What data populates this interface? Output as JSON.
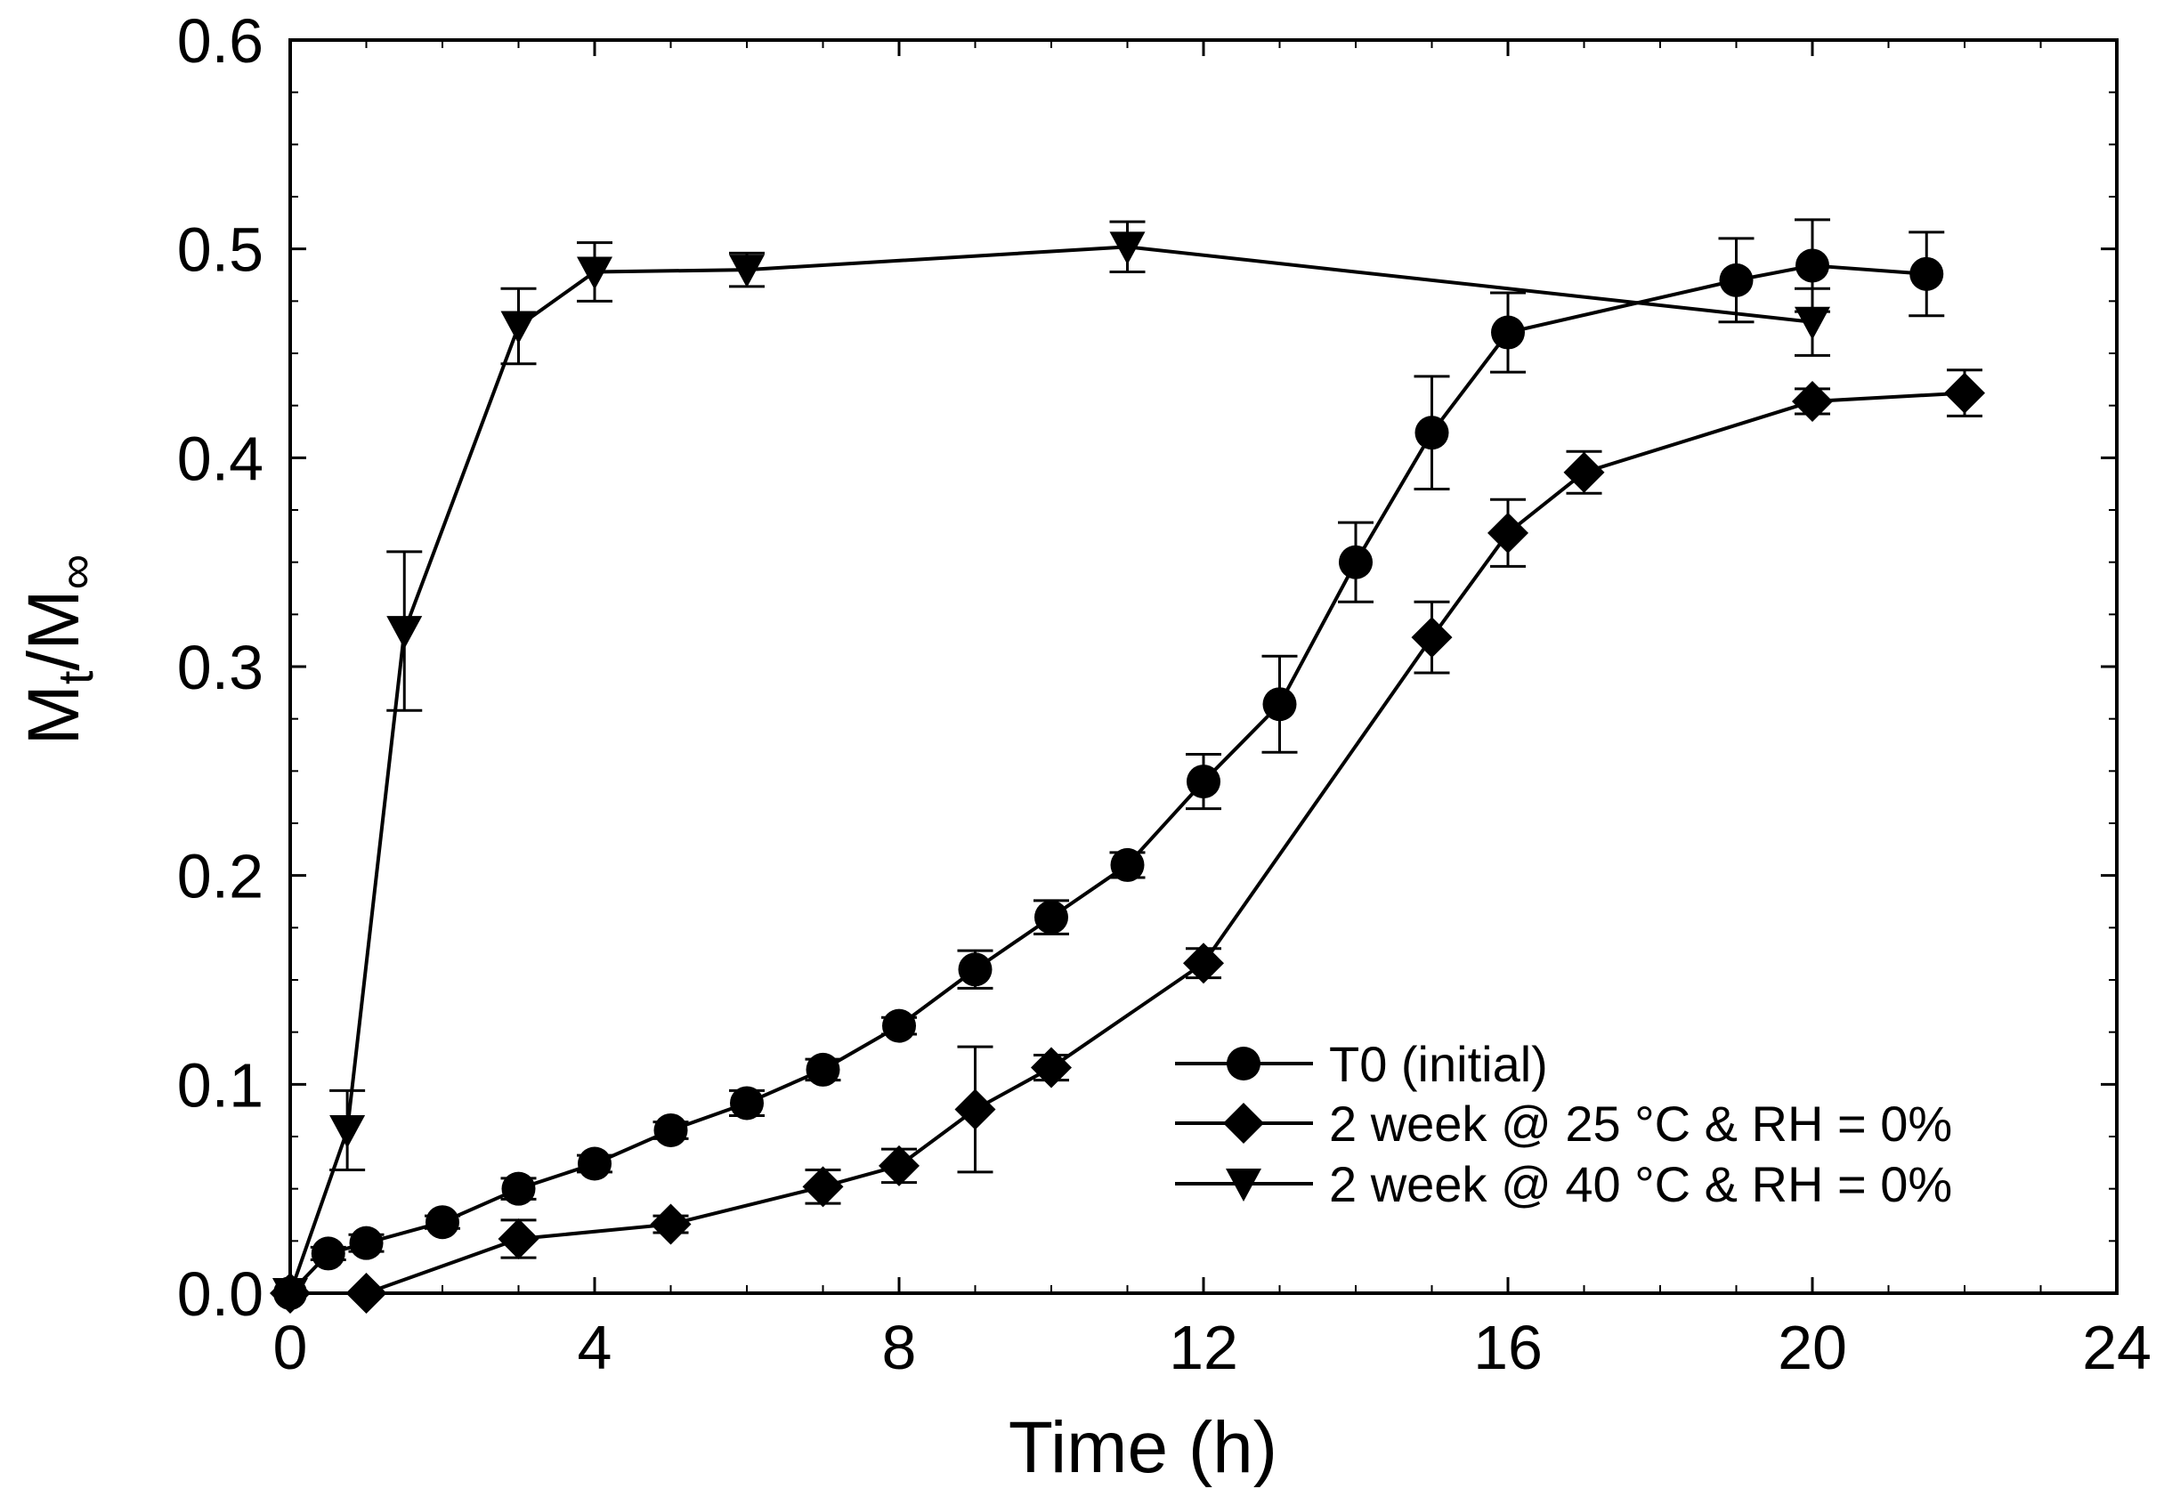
{
  "chart_data": {
    "type": "line",
    "title": "",
    "xlabel": "Time (h)",
    "ylabel": {
      "main": "M",
      "sub1": "t",
      "mid": "/M",
      "sub2": "∞"
    },
    "xlim": [
      0,
      24
    ],
    "ylim": [
      0,
      0.6
    ],
    "xticks": [
      0,
      4,
      8,
      12,
      16,
      20,
      24
    ],
    "yticks": [
      0.0,
      0.1,
      0.2,
      0.3,
      0.4,
      0.5,
      0.6
    ],
    "xtick_labels": [
      "0",
      "4",
      "8",
      "12",
      "16",
      "20",
      "24"
    ],
    "ytick_labels": [
      "0.0",
      "0.1",
      "0.2",
      "0.3",
      "0.4",
      "0.5",
      "0.6"
    ],
    "grid": false,
    "legend_position": "bottom-right",
    "series": [
      {
        "name": "T0 (initial)",
        "marker": "circle",
        "points": [
          {
            "x": 0,
            "y": 0.0,
            "err": 0
          },
          {
            "x": 0.5,
            "y": 0.019,
            "err": 0.003
          },
          {
            "x": 1,
            "y": 0.024,
            "err": 0.004
          },
          {
            "x": 2,
            "y": 0.034,
            "err": 0.003
          },
          {
            "x": 3,
            "y": 0.05,
            "err": 0.005
          },
          {
            "x": 4,
            "y": 0.062,
            "err": 0.004
          },
          {
            "x": 5,
            "y": 0.078,
            "err": 0.004
          },
          {
            "x": 6,
            "y": 0.091,
            "err": 0.006
          },
          {
            "x": 7,
            "y": 0.107,
            "err": 0.005
          },
          {
            "x": 8,
            "y": 0.128,
            "err": 0.004
          },
          {
            "x": 9,
            "y": 0.155,
            "err": 0.009
          },
          {
            "x": 10,
            "y": 0.18,
            "err": 0.008
          },
          {
            "x": 11,
            "y": 0.205,
            "err": 0.006
          },
          {
            "x": 12,
            "y": 0.245,
            "err": 0.013
          },
          {
            "x": 13,
            "y": 0.282,
            "err": 0.023
          },
          {
            "x": 14,
            "y": 0.35,
            "err": 0.019
          },
          {
            "x": 15,
            "y": 0.412,
            "err": 0.027
          },
          {
            "x": 16,
            "y": 0.46,
            "err": 0.019
          },
          {
            "x": 19,
            "y": 0.485,
            "err": 0.02
          },
          {
            "x": 20,
            "y": 0.492,
            "err": 0.022
          },
          {
            "x": 21.5,
            "y": 0.488,
            "err": 0.02
          }
        ]
      },
      {
        "name": "2 week @ 25 °C & RH = 0%",
        "marker": "diamond",
        "points": [
          {
            "x": 0,
            "y": 0.0,
            "err": 0
          },
          {
            "x": 1,
            "y": 0.0,
            "err": 0
          },
          {
            "x": 3,
            "y": 0.026,
            "err": 0.009
          },
          {
            "x": 5,
            "y": 0.033,
            "err": 0.004
          },
          {
            "x": 7,
            "y": 0.051,
            "err": 0.008
          },
          {
            "x": 8,
            "y": 0.061,
            "err": 0.008
          },
          {
            "x": 9,
            "y": 0.088,
            "err": 0.03
          },
          {
            "x": 10,
            "y": 0.108,
            "err": 0.006
          },
          {
            "x": 12,
            "y": 0.158,
            "err": 0.007
          },
          {
            "x": 15,
            "y": 0.314,
            "err": 0.017
          },
          {
            "x": 16,
            "y": 0.364,
            "err": 0.016
          },
          {
            "x": 17,
            "y": 0.393,
            "err": 0.01
          },
          {
            "x": 20,
            "y": 0.427,
            "err": 0.006
          },
          {
            "x": 22,
            "y": 0.431,
            "err": 0.011
          }
        ]
      },
      {
        "name": "2 week @ 40 °C & RH = 0%",
        "marker": "triangle-down",
        "points": [
          {
            "x": 0,
            "y": 0.0,
            "err": 0
          },
          {
            "x": 0.75,
            "y": 0.078,
            "err": 0.019
          },
          {
            "x": 1.5,
            "y": 0.317,
            "err": 0.038
          },
          {
            "x": 3,
            "y": 0.463,
            "err": 0.018
          },
          {
            "x": 4,
            "y": 0.489,
            "err": 0.014
          },
          {
            "x": 6,
            "y": 0.49,
            "err": 0.008
          },
          {
            "x": 11,
            "y": 0.501,
            "err": 0.012
          },
          {
            "x": 20,
            "y": 0.465,
            "err": 0.016
          }
        ]
      }
    ]
  }
}
